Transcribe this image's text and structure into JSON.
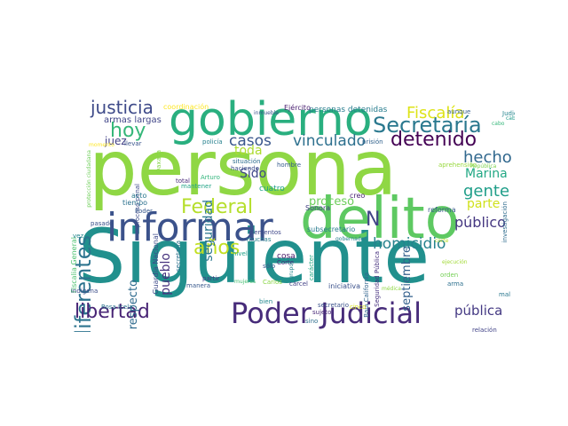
{
  "words": [
    {
      "text": "persona",
      "color": "#8fd744"
    },
    {
      "text": "Siguiente",
      "color": "#21908d"
    },
    {
      "text": "delito",
      "color": "#5ec962"
    },
    {
      "text": "informar",
      "color": "#3b528b"
    },
    {
      "text": "gobierno",
      "color": "#29af7f"
    },
    {
      "text": "Poder Judicial",
      "color": "#472c7a"
    },
    {
      "text": "Secretaría",
      "color": "#2a788e"
    },
    {
      "text": "detenido",
      "color": "#440154"
    },
    {
      "text": "Fiscalía",
      "color": "#dde318"
    },
    {
      "text": "justicia",
      "color": "#3e4a89"
    },
    {
      "text": "hoy",
      "color": "#35b779"
    },
    {
      "text": "diferentes",
      "color": "#2c738e"
    },
    {
      "text": "libertad",
      "color": "#482475"
    },
    {
      "text": "Federal",
      "color": "#b5de2b"
    },
    {
      "text": "años",
      "color": "#c2df23"
    },
    {
      "text": "hecho",
      "color": "#31688e"
    },
    {
      "text": "gente",
      "color": "#1f9e89"
    },
    {
      "text": "homicidio",
      "color": "#26828e"
    },
    {
      "text": "casos",
      "color": "#39568c"
    },
    {
      "text": "vinculado",
      "color": "#2d708e"
    },
    {
      "text": "N",
      "color": "#414487"
    },
    {
      "text": "Marina",
      "color": "#22a884"
    },
    {
      "text": "septiembre",
      "color": "#34618d"
    },
    {
      "text": "público",
      "color": "#453781"
    },
    {
      "text": "pública",
      "color": "#443983"
    },
    {
      "text": "parte",
      "color": "#d0e11c"
    },
    {
      "text": "proceso",
      "color": "#6ccd5a"
    },
    {
      "text": "toda",
      "color": "#addc30"
    },
    {
      "text": "Sido",
      "color": "#3f4788"
    },
    {
      "text": "seguridad",
      "color": "#2a768e"
    },
    {
      "text": "pueblo",
      "color": "#46327e"
    },
    {
      "text": "respecto",
      "color": "#2f6b8e"
    },
    {
      "text": "juez",
      "color": "#424086"
    },
    {
      "text": "armas largas",
      "color": "#404588"
    },
    {
      "text": "personas detenidas",
      "color": "#287d8e"
    },
    {
      "text": "coordinación",
      "color": "#fde725"
    },
    {
      "text": "Ejército",
      "color": "#481d6f"
    },
    {
      "text": "inmueble",
      "color": "#3b528b"
    },
    {
      "text": "José",
      "color": "#7ad151"
    },
    {
      "text": "Judicatura",
      "color": "#25848e"
    },
    {
      "text": "aunque",
      "color": "#355f8d"
    },
    {
      "text": "cabo",
      "color": "#1f9a8a"
    },
    {
      "text": "llevar",
      "color": "#3a548c"
    },
    {
      "text": "Oaxaca",
      "color": "#86d549"
    },
    {
      "text": "policía",
      "color": "#26818e"
    },
    {
      "text": "prisión",
      "color": "#33638d"
    },
    {
      "text": "situación",
      "color": "#2e6d8e"
    },
    {
      "text": "haciendo",
      "color": "#3c4f8a"
    },
    {
      "text": "hombre",
      "color": "#365c8d"
    },
    {
      "text": "aprehensión",
      "color": "#98d83e"
    },
    {
      "text": "República",
      "color": "#7fd34e"
    },
    {
      "text": "Arturo",
      "color": "#31b57b"
    },
    {
      "text": "total",
      "color": "#482979"
    },
    {
      "text": "proceso penal",
      "color": "#3e4c8a"
    },
    {
      "text": "creo",
      "color": "#482173"
    },
    {
      "text": "mantener",
      "color": "#20a386"
    },
    {
      "text": "tiempo",
      "color": "#2c718e"
    },
    {
      "text": "acto",
      "color": "#2a788e"
    },
    {
      "text": "Poder",
      "color": "#38598c"
    },
    {
      "text": "pasado",
      "color": "#3b518b"
    },
    {
      "text": "Sonora",
      "color": "#433e85"
    },
    {
      "text": "reforma",
      "color": "#38598c"
    },
    {
      "text": "cuatro",
      "color": "#1fa088"
    },
    {
      "text": "subsecretario",
      "color": "#297b8e"
    },
    {
      "text": "gobernador",
      "color": "#27808e"
    },
    {
      "text": "corte",
      "color": "#b8de29"
    },
    {
      "text": "investigación",
      "color": "#2f6c8e"
    },
    {
      "text": "elementos",
      "color": "#3f4889"
    },
    {
      "text": "muchas",
      "color": "#277e8e"
    },
    {
      "text": "Guardia Nacional",
      "color": "#3e4989"
    },
    {
      "text": "secretaría",
      "color": "#2d718e"
    },
    {
      "text": "Fiscalía General",
      "color": "#4ac16d"
    },
    {
      "text": "nivel",
      "color": "#1fa188"
    },
    {
      "text": "cosa",
      "color": "#481668"
    },
    {
      "text": "sólo",
      "color": "#3a538b"
    },
    {
      "text": "Corte",
      "color": "#462f7c"
    },
    {
      "text": "Seguridad Pública",
      "color": "#46307e"
    },
    {
      "text": "carácter",
      "color": "#22a785"
    },
    {
      "text": "cárcel",
      "color": "#424186"
    },
    {
      "text": "partir",
      "color": "#433d84"
    },
    {
      "text": "Carlos",
      "color": "#8bd646"
    },
    {
      "text": "iniciativa",
      "color": "#3b518b"
    },
    {
      "text": "médica",
      "color": "#8fd744"
    },
    {
      "text": "Baja California",
      "color": "#32658e"
    },
    {
      "text": "orden",
      "color": "#74d055"
    },
    {
      "text": "arma",
      "color": "#2d708e"
    },
    {
      "text": "mal",
      "color": "#2a778e"
    },
    {
      "text": "indígena",
      "color": "#3d4e8a"
    },
    {
      "text": "Rosa Icela",
      "color": "#2b748e"
    },
    {
      "text": "secretario",
      "color": "#3b528b"
    },
    {
      "text": "sujeto",
      "color": "#482878"
    },
    {
      "text": "cinco",
      "color": "#d8e219"
    },
    {
      "text": "relación",
      "color": "#414387"
    },
    {
      "text": "sino",
      "color": "#2e6e8e"
    },
    {
      "text": "vez",
      "color": "#24878e"
    },
    {
      "text": "momento",
      "color": "#fde725"
    },
    {
      "text": "protección ciudadana",
      "color": "#6ece58"
    },
    {
      "text": "bien",
      "color": "#23898e"
    },
    {
      "text": "mujeres",
      "color": "#44bf70"
    },
    {
      "text": "ejecución",
      "color": "#a2da37"
    },
    {
      "text": "cabo",
      "color": "#36b77a"
    },
    {
      "text": "grupo",
      "color": "#23888e"
    },
    {
      "text": "manera",
      "color": "#38588c"
    }
  ]
}
